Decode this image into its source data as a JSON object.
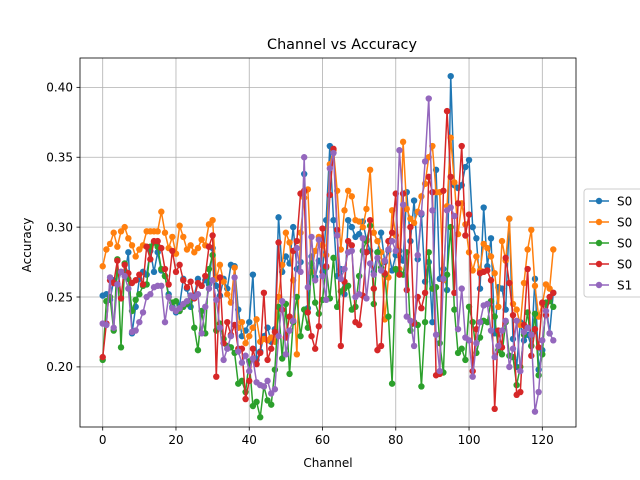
{
  "chart_data": {
    "type": "line",
    "title": "Channel vs Accuracy",
    "xlabel": "Channel",
    "ylabel": "Accuracy",
    "xlim": [
      -6.2,
      129.2
    ],
    "ylim": [
      0.157,
      0.421
    ],
    "xticks": [
      0,
      20,
      40,
      60,
      80,
      100,
      120
    ],
    "yticks": [
      0.2,
      0.25,
      0.3,
      0.35,
      0.4
    ],
    "ytick_labels": [
      "0.20",
      "0.25",
      "0.30",
      "0.35",
      "0.40"
    ],
    "grid": true,
    "legend_position": "center-right",
    "series": [
      {
        "name": "S0",
        "color": "#1f77b4",
        "y": [
          0.251,
          0.252,
          0.248,
          0.262,
          0.259,
          0.268,
          0.265,
          0.282,
          0.224,
          0.243,
          0.263,
          0.268,
          0.266,
          0.283,
          0.268,
          0.282,
          0.269,
          0.265,
          0.252,
          0.243,
          0.239,
          0.244,
          0.263,
          0.256,
          0.243,
          0.251,
          0.263,
          0.258,
          0.262,
          0.259,
          0.285,
          0.258,
          0.251,
          0.263,
          0.256,
          0.273,
          0.272,
          0.241,
          0.222,
          0.226,
          0.232,
          0.266,
          0.205,
          0.211,
          0.222,
          0.228,
          0.218,
          0.227,
          0.307,
          0.268,
          0.279,
          0.274,
          0.3,
          0.27,
          0.275,
          0.338,
          0.242,
          0.279,
          0.264,
          0.276,
          0.268,
          0.305,
          0.358,
          0.305,
          0.265,
          0.27,
          0.252,
          0.305,
          0.3,
          0.293,
          0.295,
          0.304,
          0.291,
          0.283,
          0.268,
          0.282,
          0.296,
          0.275,
          0.283,
          0.269,
          0.28,
          0.283,
          0.276,
          0.325,
          0.29,
          0.319,
          0.277,
          0.309,
          0.261,
          0.275,
          0.232,
          0.341,
          0.263,
          0.27,
          0.255,
          0.408,
          0.33,
          0.328,
          0.33,
          0.343,
          0.348,
          0.3,
          0.292,
          0.256,
          0.314,
          0.272,
          0.292,
          0.224,
          0.257,
          0.256,
          0.241,
          0.306,
          0.22,
          0.2,
          0.232,
          0.219,
          0.223,
          0.215,
          0.263,
          0.198,
          0.212,
          0.245,
          0.224,
          0.253
        ]
      },
      {
        "name": "S0",
        "color": "#ff7f0e",
        "y": [
          0.272,
          0.284,
          0.288,
          0.296,
          0.286,
          0.297,
          0.3,
          0.292,
          0.287,
          0.279,
          0.284,
          0.287,
          0.297,
          0.297,
          0.297,
          0.297,
          0.311,
          0.296,
          0.285,
          0.293,
          0.281,
          0.301,
          0.293,
          0.284,
          0.287,
          0.282,
          0.285,
          0.291,
          0.287,
          0.302,
          0.305,
          0.263,
          0.273,
          0.261,
          0.252,
          0.246,
          0.271,
          0.228,
          0.232,
          0.217,
          0.222,
          0.228,
          0.234,
          0.218,
          0.22,
          0.219,
          0.221,
          0.218,
          0.25,
          0.273,
          0.296,
          0.289,
          0.262,
          0.209,
          0.296,
          0.321,
          0.327,
          0.268,
          0.283,
          0.293,
          0.287,
          0.28,
          0.345,
          0.355,
          0.326,
          0.284,
          0.312,
          0.326,
          0.322,
          0.305,
          0.304,
          0.3,
          0.313,
          0.341,
          0.296,
          0.29,
          0.282,
          0.234,
          0.264,
          0.312,
          0.294,
          0.27,
          0.361,
          0.313,
          0.306,
          0.303,
          0.311,
          0.322,
          0.331,
          0.35,
          0.358,
          0.325,
          0.325,
          0.262,
          0.315,
          0.364,
          0.332,
          0.295,
          0.317,
          0.302,
          0.282,
          0.269,
          0.279,
          0.269,
          0.288,
          0.285,
          0.279,
          0.267,
          0.243,
          0.29,
          0.276,
          0.306,
          0.245,
          0.241,
          0.23,
          0.26,
          0.284,
          0.298,
          0.258,
          0.236,
          0.245,
          0.259,
          0.256,
          0.284
        ]
      },
      {
        "name": "S0",
        "color": "#2ca02c",
        "y": [
          0.205,
          0.247,
          0.25,
          0.226,
          0.277,
          0.214,
          0.274,
          0.263,
          0.24,
          0.248,
          0.252,
          0.258,
          0.259,
          0.286,
          0.289,
          0.286,
          0.27,
          0.265,
          0.25,
          0.246,
          0.247,
          0.24,
          0.243,
          0.245,
          0.251,
          0.228,
          0.212,
          0.24,
          0.224,
          0.27,
          0.28,
          0.226,
          0.231,
          0.22,
          0.215,
          0.214,
          0.21,
          0.188,
          0.19,
          0.182,
          0.204,
          0.172,
          0.175,
          0.164,
          0.186,
          0.176,
          0.173,
          0.198,
          0.243,
          0.206,
          0.245,
          0.195,
          0.232,
          0.25,
          0.222,
          0.241,
          0.228,
          0.274,
          0.246,
          0.238,
          0.248,
          0.271,
          0.249,
          0.278,
          0.243,
          0.254,
          0.256,
          0.258,
          0.241,
          0.243,
          0.265,
          0.283,
          0.29,
          0.301,
          0.245,
          0.282,
          0.271,
          0.266,
          0.236,
          0.188,
          0.27,
          0.267,
          0.266,
          0.282,
          0.226,
          0.232,
          0.23,
          0.186,
          0.232,
          0.282,
          0.256,
          0.257,
          0.217,
          0.196,
          0.266,
          0.3,
          0.241,
          0.21,
          0.213,
          0.205,
          0.243,
          0.232,
          0.21,
          0.221,
          0.233,
          0.232,
          0.247,
          0.236,
          0.212,
          0.209,
          0.232,
          0.208,
          0.207,
          0.187,
          0.2,
          0.223,
          0.239,
          0.215,
          0.238,
          0.194,
          0.209,
          0.246,
          0.247,
          0.243
        ]
      },
      {
        "name": "S0",
        "color": "#d62728",
        "y": [
          0.207,
          0.231,
          0.262,
          0.26,
          0.276,
          0.249,
          0.273,
          0.267,
          0.26,
          0.262,
          0.266,
          0.259,
          0.286,
          0.277,
          0.29,
          0.29,
          0.285,
          0.27,
          0.259,
          0.283,
          0.268,
          0.273,
          0.262,
          0.257,
          0.261,
          0.249,
          0.26,
          0.258,
          0.265,
          0.286,
          0.294,
          0.193,
          0.264,
          0.217,
          0.232,
          0.223,
          0.23,
          0.213,
          0.213,
          0.177,
          0.19,
          0.213,
          0.202,
          0.21,
          0.253,
          0.205,
          0.213,
          0.225,
          0.289,
          0.241,
          0.221,
          0.236,
          0.283,
          0.29,
          0.324,
          0.326,
          0.239,
          0.222,
          0.213,
          0.229,
          0.299,
          0.272,
          0.323,
          0.356,
          0.298,
          0.215,
          0.261,
          0.29,
          0.287,
          0.232,
          0.23,
          0.251,
          0.282,
          0.305,
          0.256,
          0.212,
          0.215,
          0.267,
          0.29,
          0.296,
          0.324,
          0.266,
          0.324,
          0.255,
          0.3,
          0.231,
          0.25,
          0.242,
          0.253,
          0.336,
          0.325,
          0.194,
          0.195,
          0.326,
          0.383,
          0.336,
          0.253,
          0.317,
          0.358,
          0.294,
          0.309,
          0.197,
          0.227,
          0.267,
          0.268,
          0.269,
          0.262,
          0.17,
          0.226,
          0.214,
          0.278,
          0.26,
          0.237,
          0.18,
          0.182,
          0.23,
          0.27,
          0.208,
          0.227,
          0.214,
          0.246,
          0.237,
          0.25,
          0.253
        ]
      },
      {
        "name": "S1",
        "color": "#9467bd",
        "y": [
          0.231,
          0.23,
          0.264,
          0.228,
          0.259,
          0.268,
          0.265,
          0.256,
          0.225,
          0.226,
          0.232,
          0.239,
          0.25,
          0.252,
          0.257,
          0.258,
          0.258,
          0.232,
          0.25,
          0.242,
          0.24,
          0.242,
          0.245,
          0.247,
          0.251,
          0.25,
          0.252,
          0.224,
          0.243,
          0.256,
          0.262,
          0.248,
          0.228,
          0.205,
          0.213,
          0.222,
          0.264,
          0.211,
          0.203,
          0.208,
          0.197,
          0.206,
          0.189,
          0.187,
          0.186,
          0.19,
          0.181,
          0.184,
          0.222,
          0.247,
          0.209,
          0.226,
          0.233,
          0.285,
          0.268,
          0.35,
          0.257,
          0.293,
          0.262,
          0.291,
          0.265,
          0.248,
          0.342,
          0.353,
          0.294,
          0.263,
          0.27,
          0.282,
          0.283,
          0.25,
          0.252,
          0.292,
          0.249,
          0.274,
          0.266,
          0.278,
          0.269,
          0.276,
          0.284,
          0.29,
          0.283,
          0.355,
          0.316,
          0.236,
          0.233,
          0.215,
          0.28,
          0.31,
          0.347,
          0.392,
          0.312,
          0.223,
          0.197,
          0.263,
          0.312,
          0.314,
          0.308,
          0.227,
          0.256,
          0.221,
          0.219,
          0.193,
          0.217,
          0.232,
          0.244,
          0.245,
          0.226,
          0.207,
          0.215,
          0.226,
          0.233,
          0.2,
          0.213,
          0.233,
          0.197,
          0.225,
          0.228,
          0.223,
          0.168,
          0.182,
          0.219,
          0.24,
          0.224,
          0.219
        ]
      }
    ]
  }
}
